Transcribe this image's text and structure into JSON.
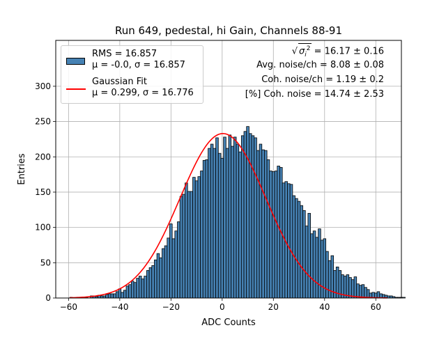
{
  "chart_data": {
    "type": "bar",
    "title": "Run 649, pedestal, hi Gain, Channels 88-91",
    "xlabel": "ADC Counts",
    "ylabel": "Entries",
    "xlim": [
      -65,
      70
    ],
    "ylim": [
      0,
      365
    ],
    "xticks": [
      -60,
      -40,
      -20,
      0,
      20,
      40,
      60
    ],
    "yticks": [
      0,
      50,
      100,
      150,
      200,
      250,
      300
    ],
    "grid": true,
    "bar_color": "#4682b4",
    "fit_color": "#ff0000",
    "bin_edges_start": -59.5,
    "bin_width": 1,
    "counts": [
      1,
      0,
      0,
      1,
      0,
      1,
      1,
      0,
      3,
      3,
      2,
      4,
      3,
      3,
      5,
      6,
      6,
      6,
      9,
      13,
      8,
      11,
      17,
      19,
      24,
      22,
      28,
      31,
      27,
      31,
      39,
      43,
      46,
      54,
      63,
      57,
      70,
      74,
      85,
      105,
      84,
      95,
      108,
      144,
      147,
      163,
      151,
      151,
      171,
      166,
      172,
      180,
      195,
      196,
      212,
      218,
      212,
      227,
      205,
      198,
      228,
      212,
      231,
      215,
      228,
      218,
      207,
      230,
      236,
      243,
      233,
      230,
      227,
      209,
      218,
      210,
      209,
      196,
      180,
      179,
      180,
      187,
      185,
      163,
      165,
      162,
      161,
      145,
      141,
      137,
      131,
      124,
      102,
      120,
      91,
      95,
      86,
      98,
      82,
      84,
      66,
      53,
      60,
      39,
      44,
      39,
      33,
      31,
      33,
      29,
      26,
      30,
      20,
      18,
      19,
      15,
      12,
      7,
      8,
      7,
      9,
      6,
      5,
      4,
      3,
      3,
      2,
      1,
      1,
      1,
      1,
      0,
      0
    ],
    "gaussian_fit": {
      "mu": 0.299,
      "sigma": 16.776,
      "amplitude": 233
    },
    "legend": [
      {
        "line1": "RMS = 16.857",
        "line2": "μ = -0.0, σ = 16.857"
      },
      {
        "line1": "Gaussian Fit",
        "line2": "μ = 0.299, σ = 16.776"
      }
    ],
    "stats": {
      "sigma_label": "σ",
      "sigma_sub": "i",
      "sigma_sup": "2",
      "sigma_value": " = 16.17 ± 0.16",
      "avg_noise": "Avg. noise/ch = 8.08 ± 0.08",
      "coh_noise": "Coh. noise/ch = 1.19 ± 0.2",
      "pct_coh_noise": "[%] Coh. noise = 14.74 ± 2.53"
    }
  }
}
